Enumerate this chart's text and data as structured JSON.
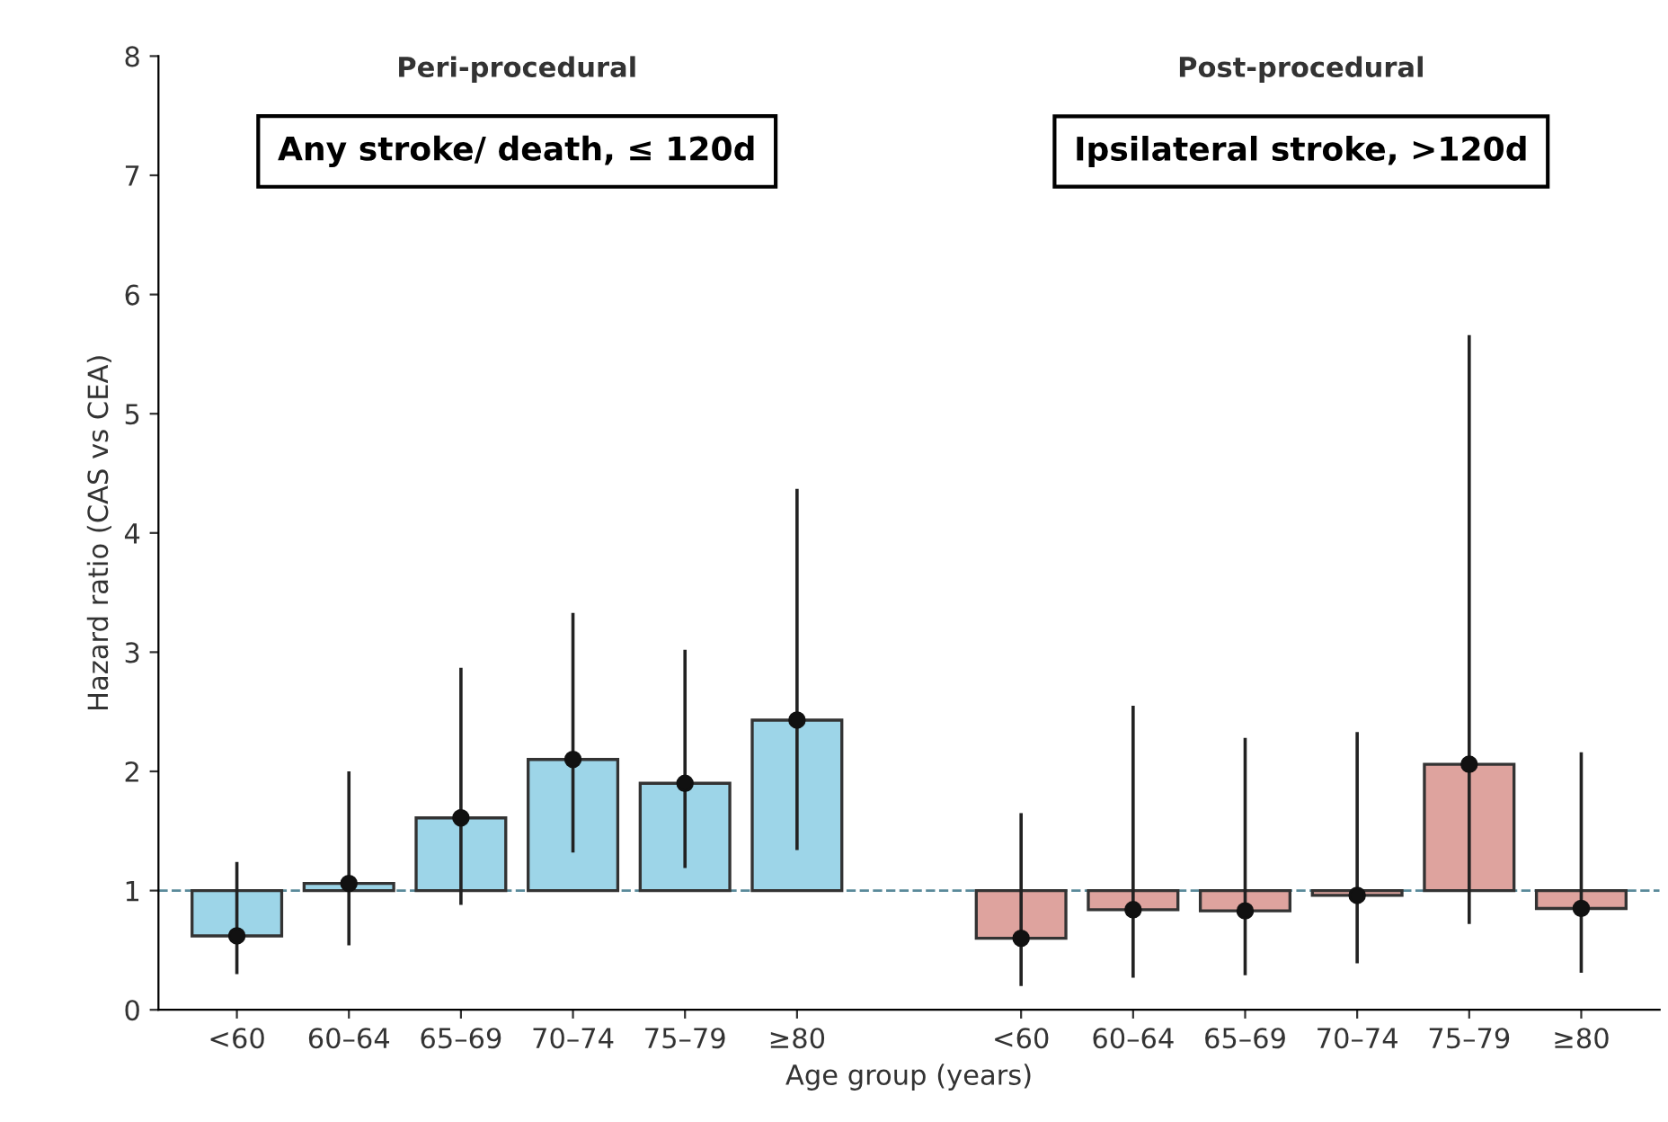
{
  "chart_data": {
    "type": "bar",
    "xlabel": "Age group (years)",
    "ylabel": "Hazard ratio (CAS vs CEA)",
    "categories": [
      "<60",
      "60–64",
      "65–69",
      "70–74",
      "75–79",
      "≥80",
      null,
      "<60",
      "60–64",
      "65–69",
      "70–74",
      "75–79",
      "≥80"
    ],
    "series": [
      {
        "type": "bar",
        "base": [
          1,
          1,
          1,
          1,
          1,
          1,
          null,
          1,
          1,
          1,
          1,
          1,
          1
        ],
        "values": [
          -0.38,
          0.06,
          0.61,
          1.1,
          0.9,
          1.43,
          null,
          -0.4,
          -0.16,
          -0.17,
          -0.04,
          1.06,
          -0.15
        ],
        "colors": [
          "#9dd5e8",
          "#9dd5e8",
          "#9dd5e8",
          "#9dd5e8",
          "#9dd5e8",
          "#9dd5e8",
          null,
          "#dea39e",
          "#dea39e",
          "#dea39e",
          "#dea39e",
          "#dea39e",
          "#dea39e"
        ]
      },
      {
        "type": "scatter",
        "color": "#111111",
        "marker": "circle",
        "values": [
          0.62,
          1.06,
          1.61,
          2.1,
          1.9,
          2.43,
          null,
          0.6,
          0.84,
          0.83,
          0.96,
          2.06,
          0.85
        ],
        "errors": [
          [
            0.3,
            1.24
          ],
          [
            0.54,
            2.0
          ],
          [
            0.88,
            2.87
          ],
          [
            1.32,
            3.33
          ],
          [
            1.19,
            3.02
          ],
          [
            1.34,
            4.37
          ],
          null,
          [
            0.2,
            1.65
          ],
          [
            0.27,
            2.55
          ],
          [
            0.29,
            2.28
          ],
          [
            0.39,
            2.33
          ],
          [
            0.72,
            5.66
          ],
          [
            0.31,
            2.16
          ]
        ]
      }
    ],
    "ylim": [
      0,
      8
    ],
    "yticks": [
      0,
      1,
      2,
      3,
      4,
      5,
      6,
      7,
      8
    ],
    "ref_lines": [
      {
        "axis": "y",
        "value": 1,
        "color": "#5a8a9a",
        "line_style": "dashed"
      }
    ],
    "annotations": [
      "Peri-procedural",
      "Post-procedural",
      "Any stroke/ death, ≤ 120d",
      "Ipsilateral stroke, >120d"
    ],
    "grid": false,
    "legend": false
  }
}
